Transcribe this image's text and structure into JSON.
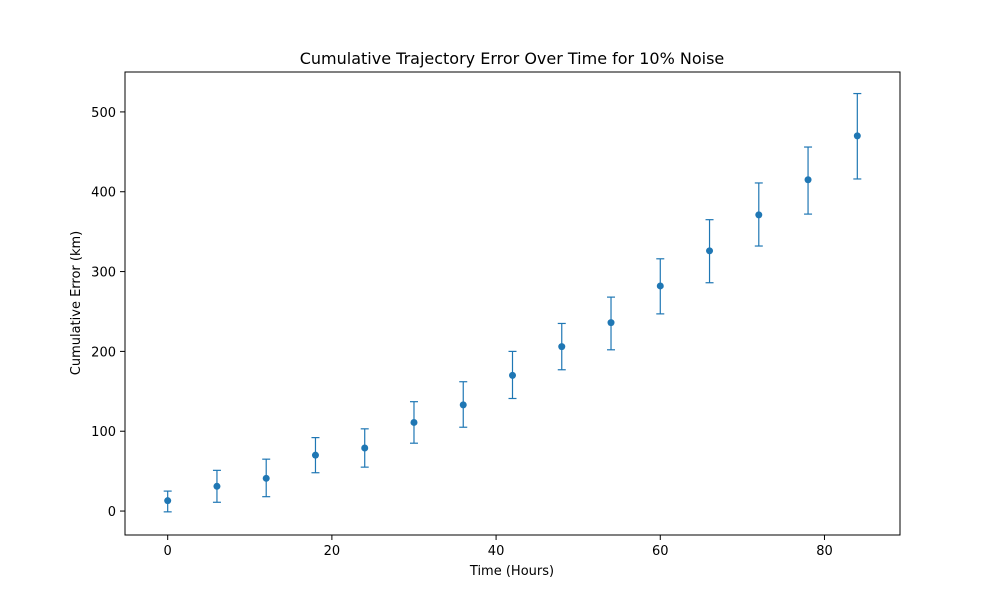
{
  "chart_data": {
    "type": "scatter",
    "title": "Cumulative Trajectory Error Over Time for  10% Noise",
    "xlabel": "Time (Hours)",
    "ylabel": "Cumulative Error (km)",
    "xlim": [
      -5.2,
      89.2
    ],
    "ylim": [
      -30,
      550
    ],
    "xticks": [
      0,
      20,
      40,
      60,
      80
    ],
    "yticks": [
      0,
      100,
      200,
      300,
      400,
      500
    ],
    "grid": false,
    "color": "#1f77b4",
    "series": [
      {
        "x": [
          0,
          6,
          12,
          18,
          24,
          30,
          36,
          42,
          48,
          54,
          60,
          66,
          72,
          78,
          84
        ],
        "y": [
          13,
          31,
          41,
          70,
          79,
          111,
          133,
          170,
          206,
          236,
          282,
          326,
          371,
          415,
          470
        ],
        "err_low": [
          -1,
          11,
          18,
          48,
          55,
          85,
          105,
          141,
          177,
          202,
          247,
          286,
          332,
          372,
          416
        ],
        "err_high": [
          25,
          51,
          65,
          92,
          103,
          137,
          162,
          200,
          235,
          268,
          316,
          365,
          411,
          456,
          523
        ]
      }
    ]
  }
}
